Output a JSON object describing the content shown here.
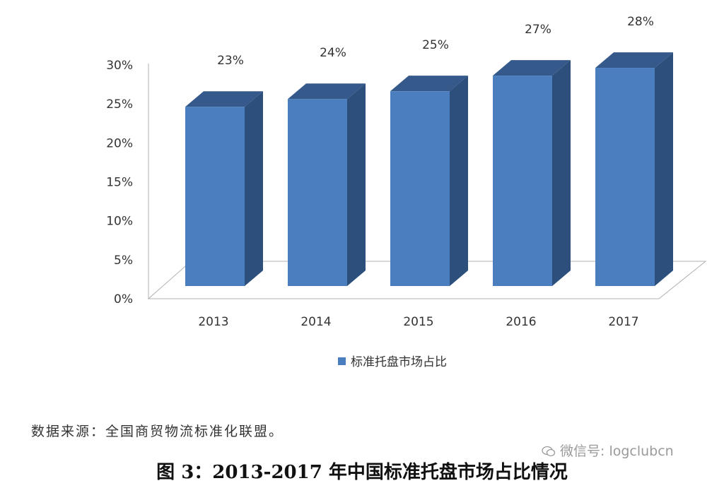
{
  "chart_data": {
    "type": "bar",
    "style": "3d-column",
    "categories": [
      "2013",
      "2014",
      "2015",
      "2016",
      "2017"
    ],
    "series": [
      {
        "name": "标准托盘市场占比",
        "values": [
          23,
          24,
          25,
          27,
          28
        ],
        "color": "#4a7ebf"
      }
    ],
    "data_labels": [
      "23%",
      "24%",
      "25%",
      "27%",
      "28%"
    ],
    "y_ticks": [
      "0%",
      "5%",
      "10%",
      "15%",
      "20%",
      "25%",
      "30%"
    ],
    "ylim": [
      0,
      30
    ],
    "grid": false,
    "legend_position": "bottom",
    "colors": {
      "bar_front": "#4a7ebf",
      "bar_side": "#2c4f7c",
      "bar_top": "#35598a"
    }
  },
  "source_note": "数据来源：全国商贸物流标准化联盟。",
  "caption": "图 3：2013-2017 年中国标准托盘市场占比情况",
  "watermark": {
    "icon": "wechat-icon",
    "text": "微信号: logclubcn"
  }
}
